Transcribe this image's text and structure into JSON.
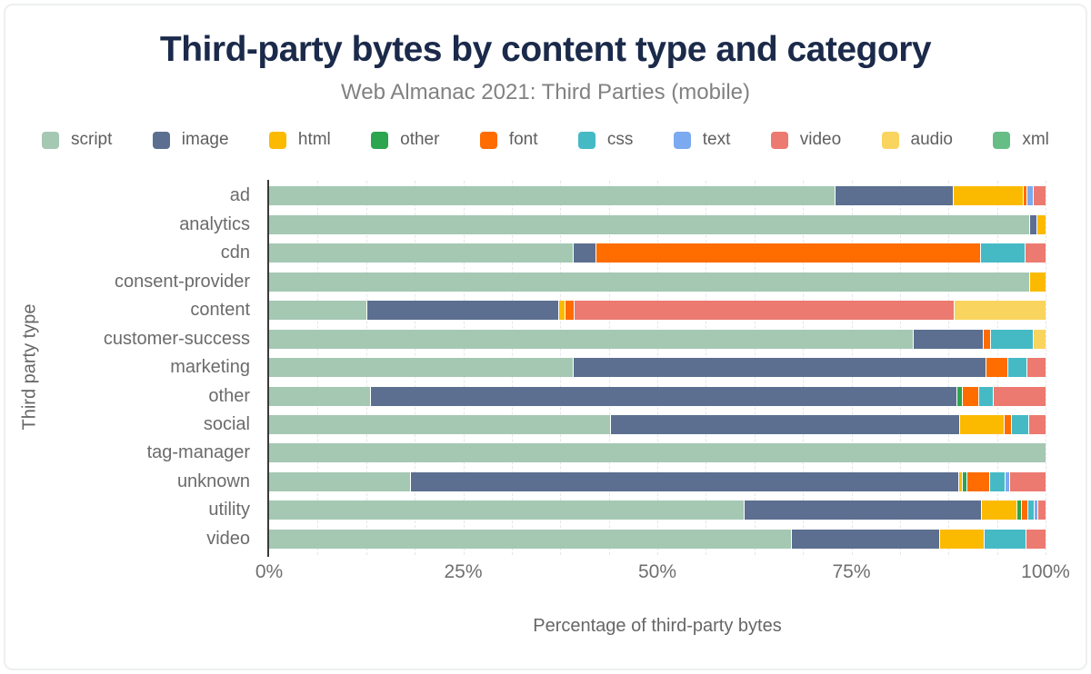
{
  "title": "Third-party bytes by content type and category",
  "subtitle": "Web Almanac 2021: Third Parties (mobile)",
  "chart_data": {
    "type": "bar",
    "orientation": "horizontal",
    "stacked": true,
    "grid": "dashed-vertical-minor",
    "legend_position": "top",
    "title": "Third-party bytes by content type and category",
    "subtitle": "Web Almanac 2021: Third Parties (mobile)",
    "xlabel": "Percentage of third-party bytes",
    "ylabel": "Third party type",
    "xlim": [
      0,
      100
    ],
    "x_ticks": [
      {
        "label": "0%",
        "value": 0
      },
      {
        "label": "25%",
        "value": 25
      },
      {
        "label": "50%",
        "value": 50
      },
      {
        "label": "75%",
        "value": 75
      },
      {
        "label": "100%",
        "value": 100
      }
    ],
    "categories": [
      "ad",
      "analytics",
      "cdn",
      "consent-provider",
      "content",
      "customer-success",
      "marketing",
      "other",
      "social",
      "tag-manager",
      "unknown",
      "utility",
      "video"
    ],
    "series": [
      {
        "name": "script",
        "color": "#a5c8b3",
        "values": [
          73,
          98,
          39.2,
          98,
          12.6,
          83,
          39.2,
          13.1,
          44,
          100,
          18.3,
          61.2,
          67.3
        ]
      },
      {
        "name": "image",
        "color": "#5c6f90",
        "values": [
          15.2,
          1,
          3,
          0,
          24.7,
          9,
          53.2,
          75.6,
          45,
          0,
          70.6,
          30.6,
          19.1
        ]
      },
      {
        "name": "html",
        "color": "#fbba00",
        "values": [
          9,
          1,
          0,
          2,
          0.9,
          0,
          0,
          0,
          5.7,
          0,
          0.5,
          4.6,
          5.8
        ]
      },
      {
        "name": "other",
        "color": "#2da44e",
        "values": [
          0,
          0,
          0,
          0,
          0,
          0,
          0,
          0.7,
          0,
          0,
          0.5,
          0.6,
          0
        ]
      },
      {
        "name": "font",
        "color": "#ff6c00",
        "values": [
          0.5,
          0,
          49.5,
          0,
          1.2,
          1,
          2.8,
          2,
          1,
          0,
          3,
          0.8,
          0
        ]
      },
      {
        "name": "css",
        "color": "#45bac5",
        "values": [
          0,
          0,
          5.7,
          0,
          0,
          5.5,
          2.5,
          1.9,
          2.2,
          0,
          2,
          0.8,
          5.3
        ]
      },
      {
        "name": "text",
        "color": "#7baaf0",
        "values": [
          0.8,
          0,
          0,
          0,
          0,
          0,
          0,
          0,
          0,
          0,
          0.5,
          0.5,
          0
        ]
      },
      {
        "name": "video",
        "color": "#ec7a70",
        "values": [
          1.5,
          0,
          2.6,
          0,
          48.9,
          0,
          2.3,
          6.7,
          2.1,
          0,
          4.6,
          0.9,
          2.5
        ]
      },
      {
        "name": "audio",
        "color": "#f9d45f",
        "values": [
          0,
          0,
          0,
          0,
          11.7,
          1.5,
          0,
          0,
          0,
          0,
          0,
          0,
          0
        ]
      },
      {
        "name": "xml",
        "color": "#67bd86",
        "values": [
          0,
          0,
          0,
          0,
          0,
          0,
          0,
          0,
          0,
          0,
          0,
          0,
          0
        ]
      }
    ],
    "colors": {
      "title": "#1b2a4a",
      "subtitle": "#818181",
      "axis_text": "#6b6b6b",
      "axis_line": "#3a3a3a",
      "gridline": "#e4e6ea"
    }
  }
}
